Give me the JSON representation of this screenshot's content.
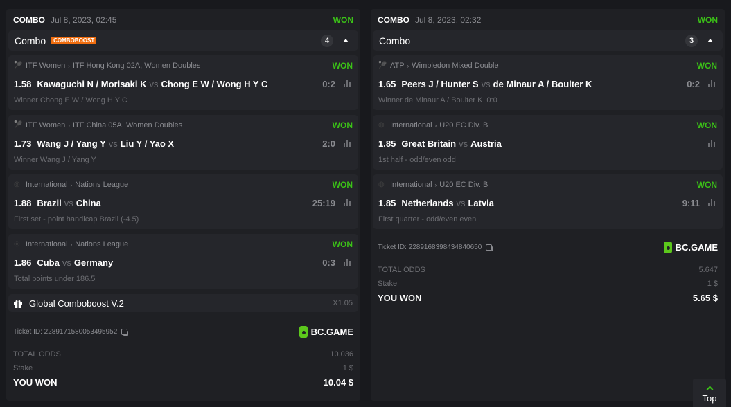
{
  "tickets": [
    {
      "type": "COMBO",
      "date": "Jul 8, 2023, 02:45",
      "status": "WON",
      "bar_label": "Combo",
      "badge": "COMBOBOOST",
      "count": "4",
      "legs": [
        {
          "sport_icon": "tennis-icon",
          "category": "ITF Women",
          "tournament": "ITF Hong Kong 02A, Women Doubles",
          "status": "WON",
          "odds": "1.58",
          "home": "Kawaguchi N / Morisaki K",
          "vs": "vs",
          "away": "Chong E W / Wong H Y C",
          "score": "0:2",
          "market": "Winner Chong E W / Wong H Y C",
          "extra": ""
        },
        {
          "sport_icon": "tennis-icon",
          "category": "ITF Women",
          "tournament": "ITF China 05A, Women Doubles",
          "status": "WON",
          "odds": "1.73",
          "home": "Wang J / Yang Y",
          "vs": "vs",
          "away": "Liu Y / Yao X",
          "score": "2:0",
          "market": "Winner Wang J / Yang Y",
          "extra": ""
        },
        {
          "sport_icon": "volleyball-icon",
          "category": "International",
          "tournament": "Nations League",
          "status": "WON",
          "odds": "1.88",
          "home": "Brazil",
          "vs": "vs",
          "away": "China",
          "score": "25:19",
          "market": "First set - point handicap Brazil (-4.5)",
          "extra": ""
        },
        {
          "sport_icon": "volleyball-icon",
          "category": "International",
          "tournament": "Nations League",
          "status": "WON",
          "odds": "1.86",
          "home": "Cuba",
          "vs": "vs",
          "away": "Germany",
          "score": "0:3",
          "market": "Total points under 186.5",
          "extra": ""
        }
      ],
      "boost": {
        "label": "Global Comboboost V.2",
        "multiplier": "X1.05"
      },
      "ticket_id": "Ticket ID: 2289171580053495952",
      "brand": "BC.GAME",
      "total_odds_label": "TOTAL ODDS",
      "total_odds": "10.036",
      "stake_label": "Stake",
      "stake": "1 $",
      "won_label": "YOU WON",
      "won": "10.04 $"
    },
    {
      "type": "COMBO",
      "date": "Jul 8, 2023, 02:32",
      "status": "WON",
      "bar_label": "Combo",
      "count": "3",
      "legs": [
        {
          "sport_icon": "tennis-icon",
          "category": "ATP",
          "tournament": "Wimbledon Mixed Double",
          "status": "WON",
          "odds": "1.65",
          "home": "Peers J / Hunter S",
          "vs": "vs",
          "away": "de Minaur A / Boulter K",
          "score": "0:2",
          "market": "Winner de Minaur A / Boulter K",
          "extra": "0:0"
        },
        {
          "sport_icon": "basketball-icon",
          "category": "International",
          "tournament": "U20 EC Div. B",
          "status": "WON",
          "odds": "1.85",
          "home": "Great Britain",
          "vs": "vs",
          "away": "Austria",
          "score": "",
          "market": "1st half - odd/even odd",
          "extra": ""
        },
        {
          "sport_icon": "basketball-icon",
          "category": "International",
          "tournament": "U20 EC Div. B",
          "status": "WON",
          "odds": "1.85",
          "home": "Netherlands",
          "vs": "vs",
          "away": "Latvia",
          "score": "9:11",
          "market": "First quarter - odd/even even",
          "extra": ""
        }
      ],
      "ticket_id": "Ticket ID: 2289168398434840650",
      "brand": "BC.GAME",
      "total_odds_label": "TOTAL ODDS",
      "total_odds": "5.647",
      "stake_label": "Stake",
      "stake": "1 $",
      "won_label": "YOU WON",
      "won": "5.65 $"
    }
  ],
  "top_button": "Top",
  "colors": {
    "won": "#3bc117",
    "badge": "#f06d0f",
    "brand": "#5cc71c"
  }
}
